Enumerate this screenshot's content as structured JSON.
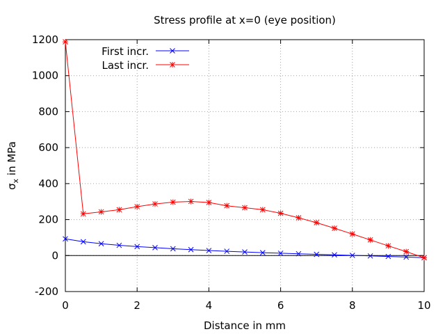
{
  "chart_data": {
    "type": "line",
    "title": "Stress profile at x=0 (eye position)",
    "xlabel": "Distance in mm",
    "ylabel_main": "σ",
    "ylabel_sub": "x",
    "ylabel_rest": " in MPa",
    "xlim": [
      0,
      10
    ],
    "ylim": [
      -200,
      1200
    ],
    "xticks": [
      "0",
      "2",
      "4",
      "6",
      "8",
      "10"
    ],
    "yticks": [
      "-200",
      "0",
      "200",
      "400",
      "600",
      "800",
      "1000",
      "1200"
    ],
    "grid": true,
    "legend_position": "top-left",
    "series": [
      {
        "name": "First incr.",
        "color": "#0000ff",
        "marker": "x",
        "x": [
          0,
          0.5,
          1,
          1.5,
          2,
          2.5,
          3,
          3.5,
          4,
          4.5,
          5,
          5.5,
          6,
          6.5,
          7,
          7.5,
          8,
          8.5,
          9,
          9.5,
          10
        ],
        "y": [
          93,
          77,
          66,
          57,
          50,
          44,
          38,
          33,
          28,
          24,
          20,
          16,
          13,
          10,
          7,
          4,
          1,
          -2,
          -5,
          -8,
          -12
        ]
      },
      {
        "name": "Last incr.",
        "color": "#ff0000",
        "marker": "asterisk",
        "x": [
          0,
          0.5,
          1,
          1.5,
          2,
          2.5,
          3,
          3.5,
          4,
          4.5,
          5,
          5.5,
          6,
          6.5,
          7,
          7.5,
          8,
          8.5,
          9,
          9.5,
          10
        ],
        "y": [
          1188,
          232,
          243,
          255,
          272,
          287,
          297,
          301,
          295,
          277,
          266,
          255,
          235,
          210,
          183,
          152,
          120,
          87,
          54,
          22,
          -12
        ]
      }
    ]
  }
}
